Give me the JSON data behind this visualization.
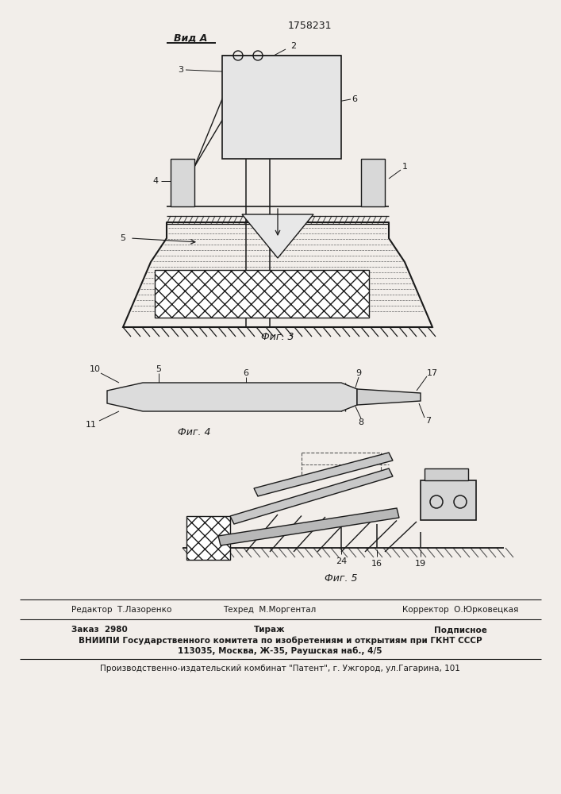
{
  "title": "1758231",
  "vid_a_label": "Вид А",
  "fig3_label": "Фиг. 3",
  "fig4_label": "Фиг. 4",
  "fig5_label": "Фиг. 5",
  "footer_line1_left": "Редактор  Т.Лазоренко",
  "footer_line1_mid": "Техред  М.Моргентал",
  "footer_line1_right": "Корректор  О.Юрковецкая",
  "footer_line2_left": "Заказ  2980",
  "footer_line2_mid": "Тираж",
  "footer_line2_right": "Подписное",
  "footer_line3": "ВНИИПИ Государственного комитета по изобретениям и открытиям при ГКНТ СССР",
  "footer_line4": "113035, Москва, Ж-35, Раушская наб., 4/5",
  "footer_line5": "Производственно-издательский комбинат \"Патент\", г. Ужгород, ул.Гагарина, 101",
  "bg_color": "#f2eeea",
  "line_color": "#1a1a1a"
}
